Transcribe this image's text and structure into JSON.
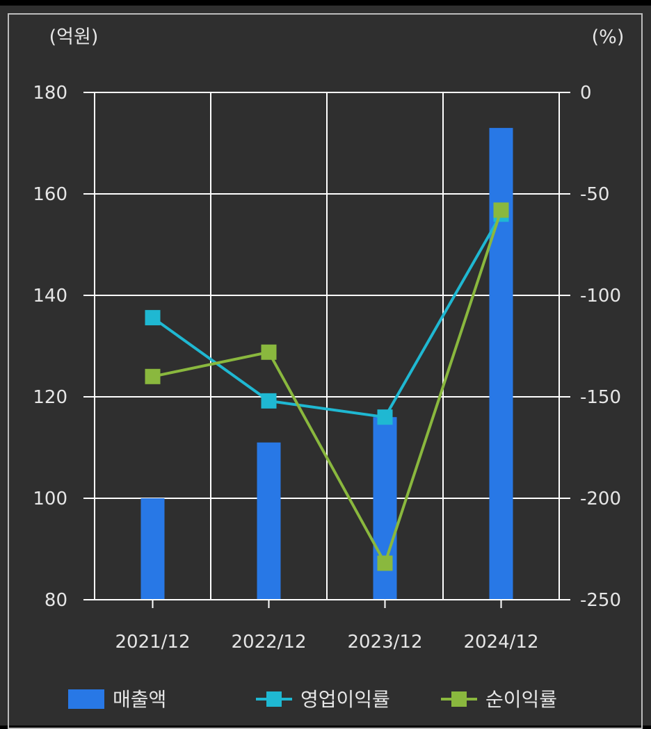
{
  "chart_data": {
    "type": "bar",
    "categories": [
      "2021/12",
      "2022/12",
      "2023/12",
      "2024/12"
    ],
    "y_left": {
      "unit": "(억원)",
      "lim": [
        80,
        180
      ],
      "ticks": [
        80,
        100,
        120,
        140,
        160,
        180
      ]
    },
    "y_right": {
      "unit": "(%)",
      "lim": [
        -250,
        0
      ],
      "ticks": [
        -250,
        -200,
        -150,
        -100,
        -50,
        0
      ]
    },
    "grid": true,
    "legend_position": "bottom",
    "series": [
      {
        "name": "매출액",
        "kind": "bar",
        "axis": "left",
        "color": "#2878e6",
        "values": [
          100,
          111,
          116,
          173
        ]
      },
      {
        "name": "영업이익률",
        "kind": "line",
        "axis": "right",
        "color": "#1fb8d2",
        "values": [
          -111,
          -152,
          -160,
          -60
        ]
      },
      {
        "name": "순이익률",
        "kind": "line",
        "axis": "right",
        "color": "#8ab83e",
        "values": [
          -140,
          -128,
          -232,
          -58
        ]
      }
    ]
  },
  "colors": {
    "background": "#2f2f2f",
    "grid": "#ffffff",
    "text": "#e6e6e6"
  }
}
